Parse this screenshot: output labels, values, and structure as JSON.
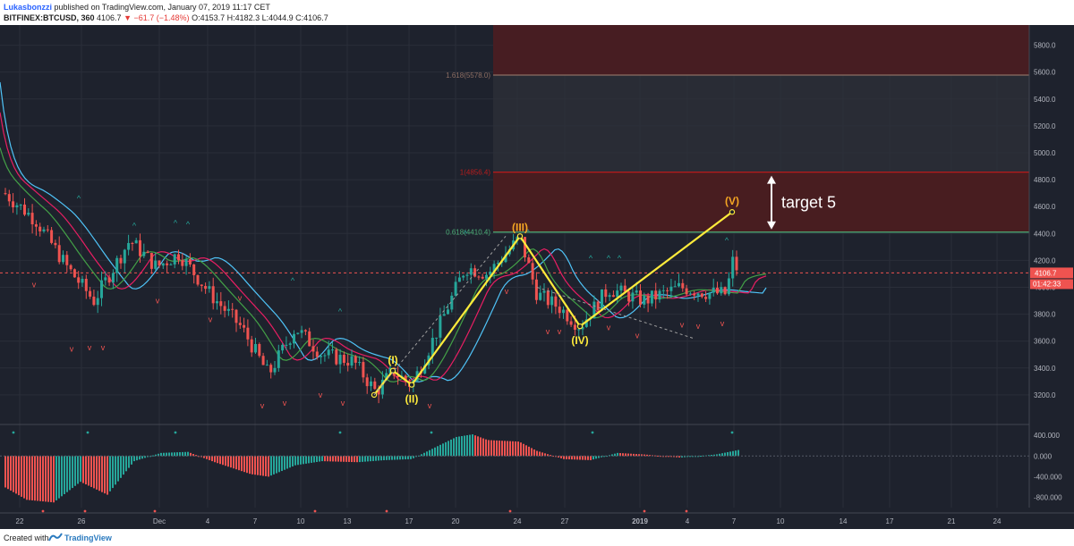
{
  "header": {
    "author": "Lukasbonzzi",
    "published": "published on TradingView.com, January 07, 2019 11:17 CET",
    "symbol": "BITFINEX:BTCUSD, 360",
    "last": "4106.7",
    "change": "−61.7 (−1.48%)",
    "ohlc": "O:4153.7 H:4182.3 L:4044.9 C:4106.7"
  },
  "footer": {
    "created_with": "Created with",
    "brand": "TradingView"
  },
  "colors": {
    "background": "#1e222d",
    "up": "#26a69a",
    "down": "#ef5350",
    "wave": "#ffeb3b",
    "wave_label": "#f5a623",
    "target_zone": "#4a1c20",
    "fib_line": "#b71c1c",
    "fib_0618": "#4caf78"
  },
  "chart_data": {
    "type": "candlestick",
    "timeframe": "360",
    "ylim": [
      3000,
      5950
    ],
    "y_ticks": [
      "5800.0",
      "5600.0",
      "5400.0",
      "5200.0",
      "5000.0",
      "4800.0",
      "4600.0",
      "4400.0",
      "4200.0",
      "4000.0",
      "3800.0",
      "3600.0",
      "3400.0",
      "3200.0"
    ],
    "x_ticks": [
      "22",
      "26",
      "Dec",
      "4",
      "7",
      "10",
      "13",
      "17",
      "20",
      "24",
      "27",
      "2019",
      "4",
      "7",
      "10",
      "14",
      "17",
      "21",
      "24"
    ],
    "price_now": {
      "label": "4106.7",
      "value": 4106.7,
      "countdown": "01:42:33"
    },
    "fib_levels": [
      {
        "label": "1.618(5578.0)",
        "value": 5578.0
      },
      {
        "label": "1(4856.4)",
        "value": 4856.4
      },
      {
        "label": "0.618(4410.4)",
        "value": 4410.4
      }
    ],
    "wave_count": [
      {
        "label": "",
        "date": "Dec 14",
        "value": 3200
      },
      {
        "label": "(I)",
        "date": "Dec 15",
        "value": 3380
      },
      {
        "label": "(II)",
        "date": "Dec 17",
        "value": 3275
      },
      {
        "label": "(III)",
        "date": "Dec 24",
        "value": 4380
      },
      {
        "label": "(IV)",
        "date": "Dec 28",
        "value": 3710
      },
      {
        "label": "(V)",
        "date": "Jan 7",
        "value": 4560
      }
    ],
    "annotation": "target 5",
    "macd_ticks": [
      "400.000",
      "0.000",
      "-400.000",
      "-800.000"
    ],
    "macd_ylim": [
      -1000,
      560
    ]
  }
}
